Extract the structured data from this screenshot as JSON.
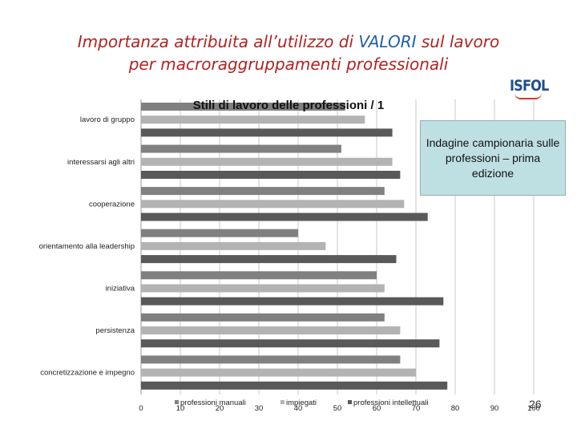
{
  "page": {
    "title_line1_a": "Importanza attribuita all’utilizzo di ",
    "title_line1_hl": "VALORI",
    "title_line1_b": " sul lavoro",
    "title_line2": "per macroraggruppamenti professionali",
    "logo_text": "ISFOL",
    "callout": "Indagine campionaria sulle professioni – prima edizione",
    "page_number": "26"
  },
  "colors": {
    "title": "#b22222",
    "title_highlight": "#1f5fa8",
    "callout_bg": "#bfe0e3"
  },
  "chart_data": {
    "type": "bar",
    "orientation": "horizontal",
    "title": "Stili di lavoro delle professioni / 1",
    "categories": [
      "lavoro di gruppo",
      "interessarsi agli altri",
      "cooperazione",
      "orientamento alla leadership",
      "iniziativa",
      "persistenza",
      "concretizzazione e impegno"
    ],
    "series": [
      {
        "name": "professioni manuali",
        "color": "#808080",
        "values": [
          52,
          51,
          62,
          40,
          60,
          62,
          66
        ]
      },
      {
        "name": "impiegati",
        "color": "#b3b3b3",
        "values": [
          57,
          64,
          67,
          47,
          62,
          66,
          70
        ]
      },
      {
        "name": "professioni intellettuali",
        "color": "#595959",
        "values": [
          64,
          66,
          73,
          65,
          77,
          76,
          78
        ]
      }
    ],
    "xlim": [
      0,
      100
    ],
    "x_ticks": [
      0,
      10,
      20,
      30,
      40,
      50,
      60,
      70,
      80,
      90,
      100
    ],
    "grid": true,
    "legend_position": "bottom"
  }
}
